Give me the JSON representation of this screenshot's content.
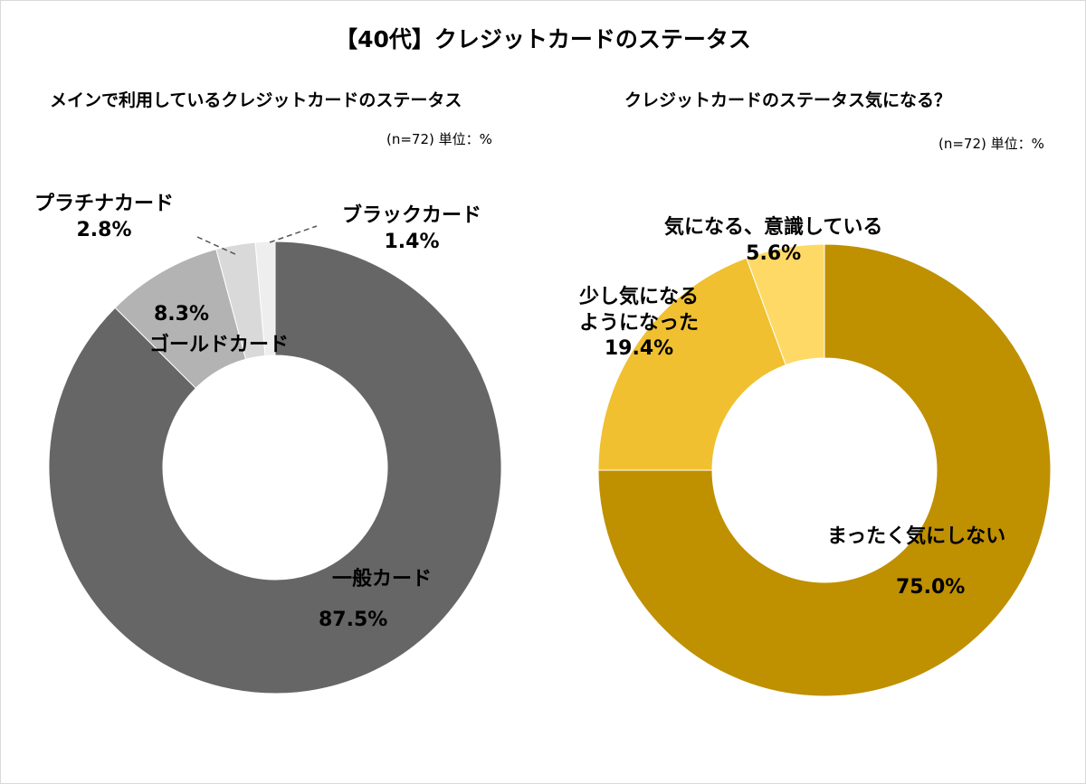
{
  "title": "【40代】クレジットカードのステータス",
  "chart_data": [
    {
      "type": "donut",
      "title": "メインで利用しているクレジットカードのステータス",
      "note": "(n=72) 単位：%",
      "slices": [
        {
          "label": "一般カード",
          "value": 87.5,
          "value_text": "87.5%",
          "color": "#666666"
        },
        {
          "label": "ゴールドカード",
          "value": 8.3,
          "value_text": "8.3%",
          "color": "#b3b3b3"
        },
        {
          "label": "プラチナカード",
          "value": 2.8,
          "value_text": "2.8%",
          "color": "#d9d9d9"
        },
        {
          "label": "ブラックカード",
          "value": 1.4,
          "value_text": "1.4%",
          "color": "#eeeeee"
        }
      ]
    },
    {
      "type": "donut",
      "title": "クレジットカードのステータス気になる？",
      "note": "(n=72) 単位：%",
      "slices": [
        {
          "label": "まったく気にしない",
          "value": 75.0,
          "value_text": "75.0%",
          "color": "#bf9000"
        },
        {
          "label": "少し気になるようになった",
          "label_lines": [
            "少し気になる",
            "ようになった"
          ],
          "value": 19.4,
          "value_text": "19.4%",
          "color": "#f0c030"
        },
        {
          "label": "気になる、意識している",
          "value": 5.6,
          "value_text": "5.6%",
          "color": "#ffd966"
        }
      ]
    }
  ]
}
